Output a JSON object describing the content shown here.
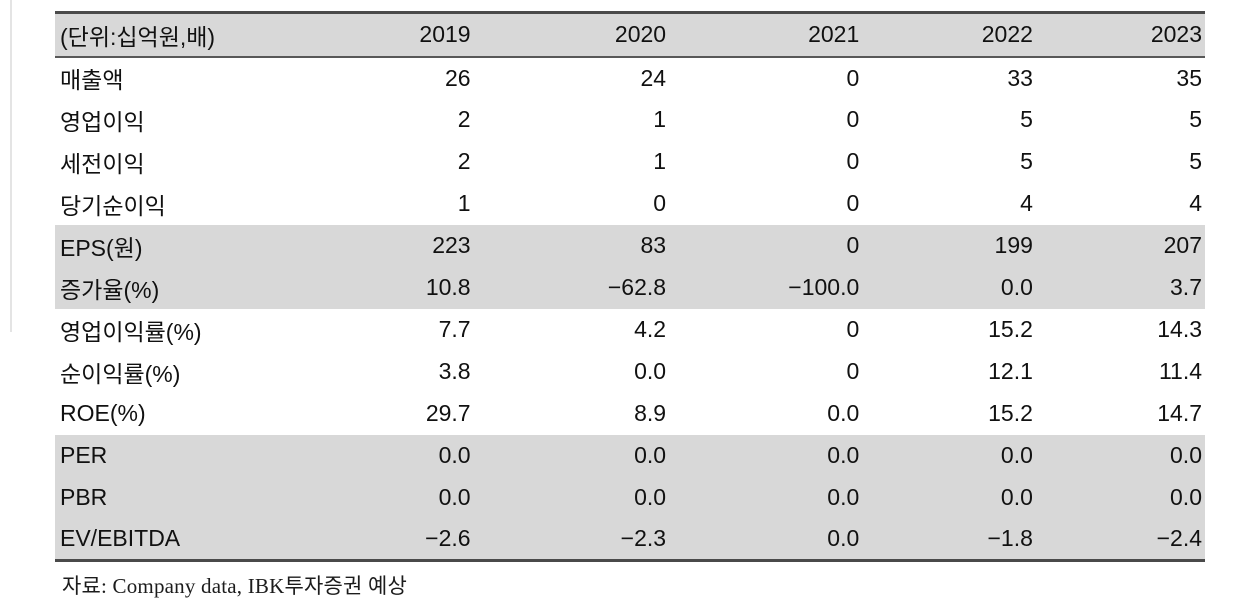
{
  "table": {
    "unit_label": "(단위:십억원,배)",
    "years": [
      "2019",
      "2020",
      "2021",
      "2022",
      "2023"
    ],
    "rows": [
      {
        "label": "매출액",
        "shaded": false,
        "values": [
          "26",
          "24",
          "0",
          "33",
          "35"
        ]
      },
      {
        "label": "영업이익",
        "shaded": false,
        "values": [
          "2",
          "1",
          "0",
          "5",
          "5"
        ]
      },
      {
        "label": "세전이익",
        "shaded": false,
        "values": [
          "2",
          "1",
          "0",
          "5",
          "5"
        ]
      },
      {
        "label": "당기순이익",
        "shaded": false,
        "values": [
          "1",
          "0",
          "0",
          "4",
          "4"
        ]
      },
      {
        "label": "EPS(원)",
        "shaded": true,
        "values": [
          "223",
          "83",
          "0",
          "199",
          "207"
        ]
      },
      {
        "label": "증가율(%)",
        "shaded": true,
        "values": [
          "10.8",
          "−62.8",
          "−100.0",
          "0.0",
          "3.7"
        ]
      },
      {
        "label": "영업이익률(%)",
        "shaded": false,
        "values": [
          "7.7",
          "4.2",
          "0",
          "15.2",
          "14.3"
        ]
      },
      {
        "label": "순이익률(%)",
        "shaded": false,
        "values": [
          "3.8",
          "0.0",
          "0",
          "12.1",
          "11.4"
        ]
      },
      {
        "label": "ROE(%)",
        "shaded": false,
        "values": [
          "29.7",
          "8.9",
          "0.0",
          "15.2",
          "14.7"
        ]
      },
      {
        "label": "PER",
        "shaded": true,
        "values": [
          "0.0",
          "0.0",
          "0.0",
          "0.0",
          "0.0"
        ]
      },
      {
        "label": "PBR",
        "shaded": true,
        "values": [
          "0.0",
          "0.0",
          "0.0",
          "0.0",
          "0.0"
        ]
      },
      {
        "label": "EV/EBITDA",
        "shaded": true,
        "values": [
          "−2.6",
          "−2.3",
          "0.0",
          "−1.8",
          "−2.4"
        ]
      }
    ]
  },
  "footer": {
    "source": "자료: Company data, IBK투자증권 예상"
  },
  "colors": {
    "band_gray": "#d8d8d8",
    "border_dark": "#4a4a4a",
    "text": "#111111"
  }
}
